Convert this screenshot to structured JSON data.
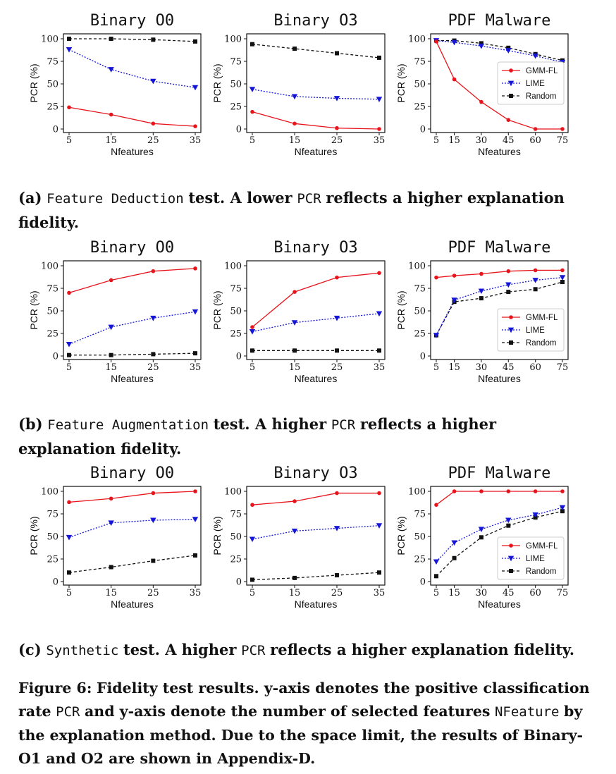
{
  "figure": {
    "caption_main": {
      "label": "Figure 6:",
      "t1": "Fidelity test results. y-axis denotes the positive classification rate",
      "c1": "PCR",
      "t2": "and y-axis denote the number of selected features",
      "c2": "NFeature",
      "t3": "by the explanation method. Due to the space limit, the results of Binary-O1 and O2 are shown in Appendix-D."
    },
    "rows": [
      {
        "caption": {
          "prefix": "(a)",
          "code": "Feature Deduction",
          "text1": "test. A lower",
          "code2": "PCR",
          "text2": "reflects a higher explanation fidelity."
        }
      },
      {
        "caption": {
          "prefix": "(b)",
          "code": "Feature Augmentation",
          "text1": "test. A higher",
          "code2": "PCR",
          "text2": "reflects a higher explanation fidelity."
        }
      },
      {
        "caption": {
          "prefix": "(c)",
          "code": "Synthetic",
          "text1": "test. A higher",
          "code2": "PCR",
          "text2": "reflects a higher explanation fidelity."
        }
      }
    ]
  },
  "colors": {
    "gmm": "#e8141c",
    "lime": "#1515d8",
    "random": "#111111"
  },
  "legend_labels": [
    "GMM-FL",
    "LIME",
    "Random"
  ],
  "chart_data": [
    {
      "type": "line",
      "title": "Binary O0",
      "xlabel": "Nfeatures",
      "ylabel": "PCR (%)",
      "x": [
        5,
        15,
        25,
        35
      ],
      "ylim": [
        0,
        100
      ],
      "yticks": [
        0,
        25,
        50,
        75,
        100
      ],
      "series": [
        {
          "name": "GMM-FL",
          "values": [
            24,
            16,
            6,
            3
          ]
        },
        {
          "name": "LIME",
          "values": [
            88,
            66,
            53,
            46
          ]
        },
        {
          "name": "Random",
          "values": [
            100,
            100,
            99,
            97
          ]
        }
      ]
    },
    {
      "type": "line",
      "title": "Binary O3",
      "xlabel": "Nfeatures",
      "ylabel": "PCR (%)",
      "x": [
        5,
        15,
        25,
        35
      ],
      "ylim": [
        0,
        100
      ],
      "yticks": [
        0,
        25,
        50,
        75,
        100
      ],
      "series": [
        {
          "name": "GMM-FL",
          "values": [
            19,
            6,
            1,
            0
          ]
        },
        {
          "name": "LIME",
          "values": [
            44,
            36,
            34,
            33
          ]
        },
        {
          "name": "Random",
          "values": [
            94,
            89,
            84,
            79
          ]
        }
      ]
    },
    {
      "type": "line",
      "title": "PDF Malware",
      "xlabel": "Nfeatures",
      "ylabel": "PCR (%)",
      "x": [
        5,
        15,
        30,
        45,
        60,
        75
      ],
      "ylim": [
        0,
        100
      ],
      "yticks": [
        0,
        25,
        50,
        75,
        100
      ],
      "legend": "center-right",
      "series": [
        {
          "name": "GMM-FL",
          "values": [
            97,
            55,
            30,
            10,
            0,
            0
          ]
        },
        {
          "name": "LIME",
          "values": [
            98,
            96,
            92,
            87,
            81,
            74
          ]
        },
        {
          "name": "Random",
          "values": [
            98,
            98,
            95,
            90,
            83,
            76
          ]
        }
      ]
    },
    {
      "type": "line",
      "title": "Binary O0",
      "xlabel": "Nfeatures",
      "ylabel": "PCR (%)",
      "x": [
        5,
        15,
        25,
        35
      ],
      "ylim": [
        0,
        100
      ],
      "yticks": [
        0,
        25,
        50,
        75,
        100
      ],
      "series": [
        {
          "name": "GMM-FL",
          "values": [
            70,
            84,
            94,
            97
          ]
        },
        {
          "name": "LIME",
          "values": [
            13,
            32,
            42,
            49
          ]
        },
        {
          "name": "Random",
          "values": [
            1,
            1,
            2,
            3
          ]
        }
      ]
    },
    {
      "type": "line",
      "title": "Binary O3",
      "xlabel": "Nfeatures",
      "ylabel": "PCR (%)",
      "x": [
        5,
        15,
        25,
        35
      ],
      "ylim": [
        0,
        100
      ],
      "yticks": [
        0,
        25,
        50,
        75,
        100
      ],
      "series": [
        {
          "name": "GMM-FL",
          "values": [
            32,
            71,
            87,
            92
          ]
        },
        {
          "name": "LIME",
          "values": [
            27,
            37,
            42,
            47
          ]
        },
        {
          "name": "Random",
          "values": [
            6,
            6,
            6,
            6
          ]
        }
      ]
    },
    {
      "type": "line",
      "title": "PDF Malware",
      "xlabel": "Nfeatures",
      "ylabel": "PCR (%)",
      "x": [
        5,
        15,
        30,
        45,
        60,
        75
      ],
      "ylim": [
        0,
        100
      ],
      "yticks": [
        0,
        25,
        50,
        75,
        100
      ],
      "legend": "center-right",
      "series": [
        {
          "name": "GMM-FL",
          "values": [
            87,
            89,
            91,
            94,
            95,
            95
          ]
        },
        {
          "name": "LIME",
          "values": [
            23,
            62,
            72,
            79,
            84,
            87
          ]
        },
        {
          "name": "Random",
          "values": [
            23,
            60,
            64,
            71,
            74,
            82
          ]
        }
      ]
    },
    {
      "type": "line",
      "title": "Binary O0",
      "xlabel": "Nfeatures",
      "ylabel": "PCR (%)",
      "x": [
        5,
        15,
        25,
        35
      ],
      "ylim": [
        0,
        100
      ],
      "yticks": [
        0,
        25,
        50,
        75,
        100
      ],
      "series": [
        {
          "name": "GMM-FL",
          "values": [
            88,
            92,
            98,
            100
          ]
        },
        {
          "name": "LIME",
          "values": [
            49,
            65,
            68,
            69
          ]
        },
        {
          "name": "Random",
          "values": [
            10,
            16,
            23,
            29
          ]
        }
      ]
    },
    {
      "type": "line",
      "title": "Binary O3",
      "xlabel": "Nfeatures",
      "ylabel": "PCR (%)",
      "x": [
        5,
        15,
        25,
        35
      ],
      "ylim": [
        0,
        100
      ],
      "yticks": [
        0,
        25,
        50,
        75,
        100
      ],
      "series": [
        {
          "name": "GMM-FL",
          "values": [
            85,
            89,
            98,
            98
          ]
        },
        {
          "name": "LIME",
          "values": [
            47,
            56,
            59,
            62
          ]
        },
        {
          "name": "Random",
          "values": [
            2,
            4,
            7,
            10
          ]
        }
      ]
    },
    {
      "type": "line",
      "title": "PDF Malware",
      "xlabel": "Nfeatures",
      "ylabel": "PCR (%)",
      "x": [
        5,
        15,
        30,
        45,
        60,
        75
      ],
      "ylim": [
        0,
        100
      ],
      "yticks": [
        0,
        25,
        50,
        75,
        100
      ],
      "legend": "center-right",
      "series": [
        {
          "name": "GMM-FL",
          "values": [
            85,
            100,
            100,
            100,
            100,
            100
          ]
        },
        {
          "name": "LIME",
          "values": [
            22,
            43,
            58,
            68,
            74,
            82
          ]
        },
        {
          "name": "Random",
          "values": [
            6,
            26,
            49,
            62,
            71,
            78
          ]
        }
      ]
    }
  ]
}
